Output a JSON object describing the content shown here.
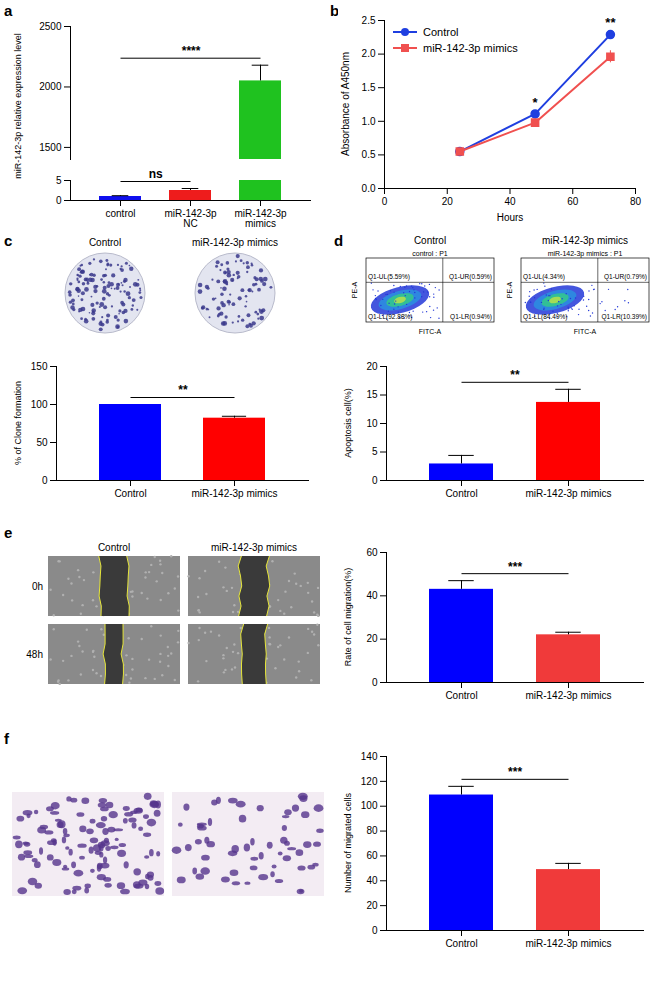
{
  "chart_data": [
    {
      "panel_letter": "a",
      "type": "bar",
      "y_label": "miR-142-3p relative expression level",
      "categories": [
        "control",
        "miR-142-3p NC",
        "miR-142-3p mimics"
      ],
      "values": [
        1,
        2.5,
        2050
      ],
      "errors": [
        0.2,
        0.5,
        130
      ],
      "colors": [
        "#1010ee",
        "#ee1c1c",
        "#1fc21f"
      ],
      "y_segments": [
        {
          "ylim": [
            0,
            5
          ],
          "yticks": [
            0,
            5
          ]
        },
        {
          "ylim": [
            1400,
            2500
          ],
          "yticks": [
            1500,
            2000,
            2500
          ]
        }
      ],
      "significance": [
        {
          "from": "control",
          "to": "miR-142-3p mimics",
          "label": "****"
        },
        {
          "from": "control",
          "to": "miR-142-3p NC",
          "label": "ns"
        }
      ]
    },
    {
      "panel_letter": "b",
      "type": "line",
      "x_label": "Hours",
      "y_label": "Absorbance of A450nm",
      "x": [
        24,
        48,
        72
      ],
      "xlim": [
        0,
        80
      ],
      "xticks": [
        0,
        20,
        40,
        60,
        80
      ],
      "ylim": [
        0,
        2.5
      ],
      "yticks": [
        {
          "value": 0,
          "label": "0.0"
        },
        {
          "value": 0.5,
          "label": "0.5"
        },
        {
          "value": 1,
          "label": "1.0"
        },
        {
          "value": 1.5,
          "label": "1.5"
        },
        {
          "value": 2,
          "label": "2.0"
        },
        {
          "value": 2.5,
          "label": "2.5"
        }
      ],
      "legend": "top-left",
      "series": [
        {
          "name": "Control",
          "color": "#1f3fe0",
          "marker": "circle",
          "values": [
            0.55,
            1.11,
            2.29
          ],
          "errors": [
            0.01,
            0.02,
            0.02
          ]
        },
        {
          "name": "miR-142-3p mimics",
          "color": "#f0504f",
          "marker": "square",
          "values": [
            0.55,
            0.98,
            1.96
          ],
          "errors": [
            0.02,
            0.03,
            0.09
          ]
        }
      ],
      "annotations": [
        {
          "x": 48,
          "text": "*"
        },
        {
          "x": 72,
          "text": "**"
        }
      ]
    },
    {
      "panel_letter": "c",
      "type": "bar",
      "image_labels": [
        "Control",
        "miR-142-3p mimics"
      ],
      "y_label": "% of Clone formation",
      "categories": [
        "Control",
        "miR-142-3p mimics"
      ],
      "values": [
        100,
        82
      ],
      "errors": [
        null,
        2.5
      ],
      "colors": [
        "#0000ff",
        "#ff0000"
      ],
      "ylim": [
        0,
        150
      ],
      "yticks": [
        0,
        50,
        100,
        150
      ],
      "significance": [
        {
          "from": "Control",
          "to": "miR-142-3p mimics",
          "label": "**"
        }
      ]
    },
    {
      "panel_letter": "d",
      "type": "bar",
      "flow_plots": [
        {
          "label": "Control",
          "title": "control : P1",
          "x_label": "FITC-A",
          "y_label": "PE-A",
          "quadrants": [
            "Q1-UL(5.59%)",
            "Q1-UR(0.59%)",
            "Q1-LL(92.88%)",
            "Q1-LR(0.94%)"
          ]
        },
        {
          "label": "miR-142-3p mimics",
          "title": "miR-142-3p mimics : P1",
          "x_label": "FITC-A",
          "y_label": "PE-A",
          "quadrants": [
            "Q1-UL(4.34%)",
            "Q1-UR(0.79%)",
            "Q1-LL(84.49%)",
            "Q1-LR(10.39%)"
          ]
        }
      ],
      "y_label": "Apoptosis cell(%)",
      "categories": [
        "Control",
        "miR-142-3p mimics"
      ],
      "values": [
        2.9,
        13.7
      ],
      "errors": [
        1.5,
        2.3
      ],
      "colors": [
        "#0000ff",
        "#ff0000"
      ],
      "ylim": [
        0,
        20
      ],
      "yticks": [
        0,
        5,
        10,
        15,
        20
      ],
      "significance": [
        {
          "from": "Control",
          "to": "miR-142-3p mimics",
          "label": "**"
        }
      ]
    },
    {
      "panel_letter": "e",
      "type": "bar",
      "image_labels": [
        "Control",
        "miR-142-3p mimics"
      ],
      "row_labels": [
        "0h",
        "48h"
      ],
      "y_label": "Rate of cell migration(%)",
      "categories": [
        "Control",
        "miR-142-3p mimics"
      ],
      "values": [
        43,
        22
      ],
      "errors": [
        4,
        1.2
      ],
      "colors": [
        "#0000ff",
        "#f03a3a"
      ],
      "ylim": [
        0,
        60
      ],
      "yticks": [
        0,
        20,
        40,
        60
      ],
      "significance": [
        {
          "from": "Control",
          "to": "miR-142-3p mimics",
          "label": "***"
        }
      ]
    },
    {
      "panel_letter": "f",
      "type": "bar",
      "y_label": "Number of migrated cells",
      "categories": [
        "Control",
        "miR-142-3p mimics"
      ],
      "values": [
        109,
        49
      ],
      "errors": [
        7,
        5
      ],
      "colors": [
        "#0000ff",
        "#f03a3a"
      ],
      "ylim": [
        0,
        140
      ],
      "yticks": [
        0,
        20,
        40,
        60,
        80,
        100,
        120,
        140
      ],
      "significance": [
        {
          "from": "Control",
          "to": "miR-142-3p mimics",
          "label": "***"
        }
      ]
    }
  ]
}
